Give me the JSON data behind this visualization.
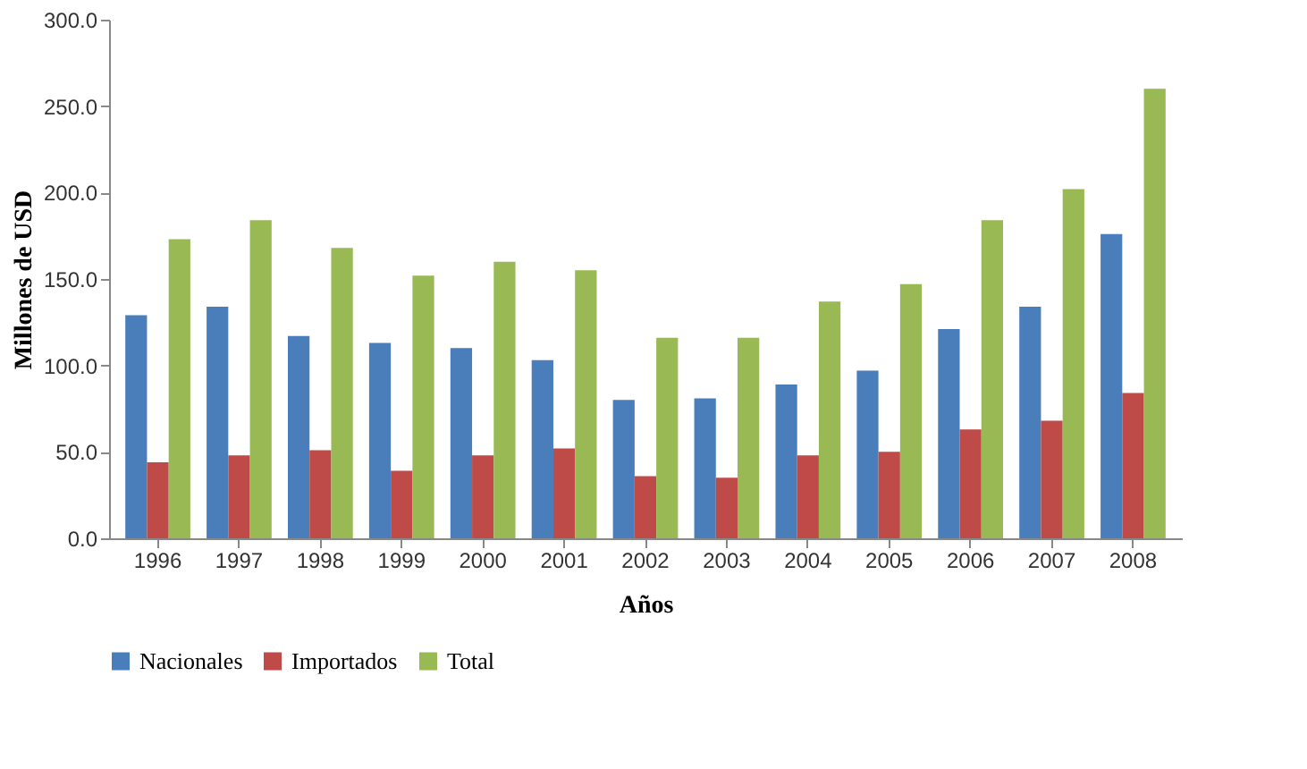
{
  "chart_data": {
    "type": "bar",
    "xlabel": "Años",
    "ylabel": "Millones de USD",
    "categories": [
      "1996",
      "1997",
      "1998",
      "1999",
      "2000",
      "2001",
      "2002",
      "2003",
      "2004",
      "2005",
      "2006",
      "2007",
      "2008"
    ],
    "series": [
      {
        "name": "Nacionales",
        "color": "#4a7ebb",
        "values": [
          129,
          134,
          117,
          113,
          110,
          103,
          80,
          81,
          89,
          97,
          121,
          134,
          176
        ]
      },
      {
        "name": "Importados",
        "color": "#be4b48",
        "values": [
          44,
          48,
          51,
          39,
          48,
          52,
          36,
          35,
          48,
          50,
          63,
          68,
          84
        ]
      },
      {
        "name": "Total",
        "color": "#98b954",
        "values": [
          173,
          184,
          168,
          152,
          160,
          155,
          116,
          116,
          137,
          147,
          184,
          202,
          260
        ]
      }
    ],
    "ylim": [
      0,
      300
    ],
    "yticks": [
      {
        "value": 0,
        "label": "0.0"
      },
      {
        "value": 50,
        "label": "50.0"
      },
      {
        "value": 100,
        "label": "100.0"
      },
      {
        "value": 150,
        "label": "150.0"
      },
      {
        "value": 200,
        "label": "200.0"
      },
      {
        "value": 250,
        "label": "250.0"
      },
      {
        "value": 300,
        "label": "300.0"
      }
    ],
    "grid": false,
    "legend": "bottom"
  }
}
